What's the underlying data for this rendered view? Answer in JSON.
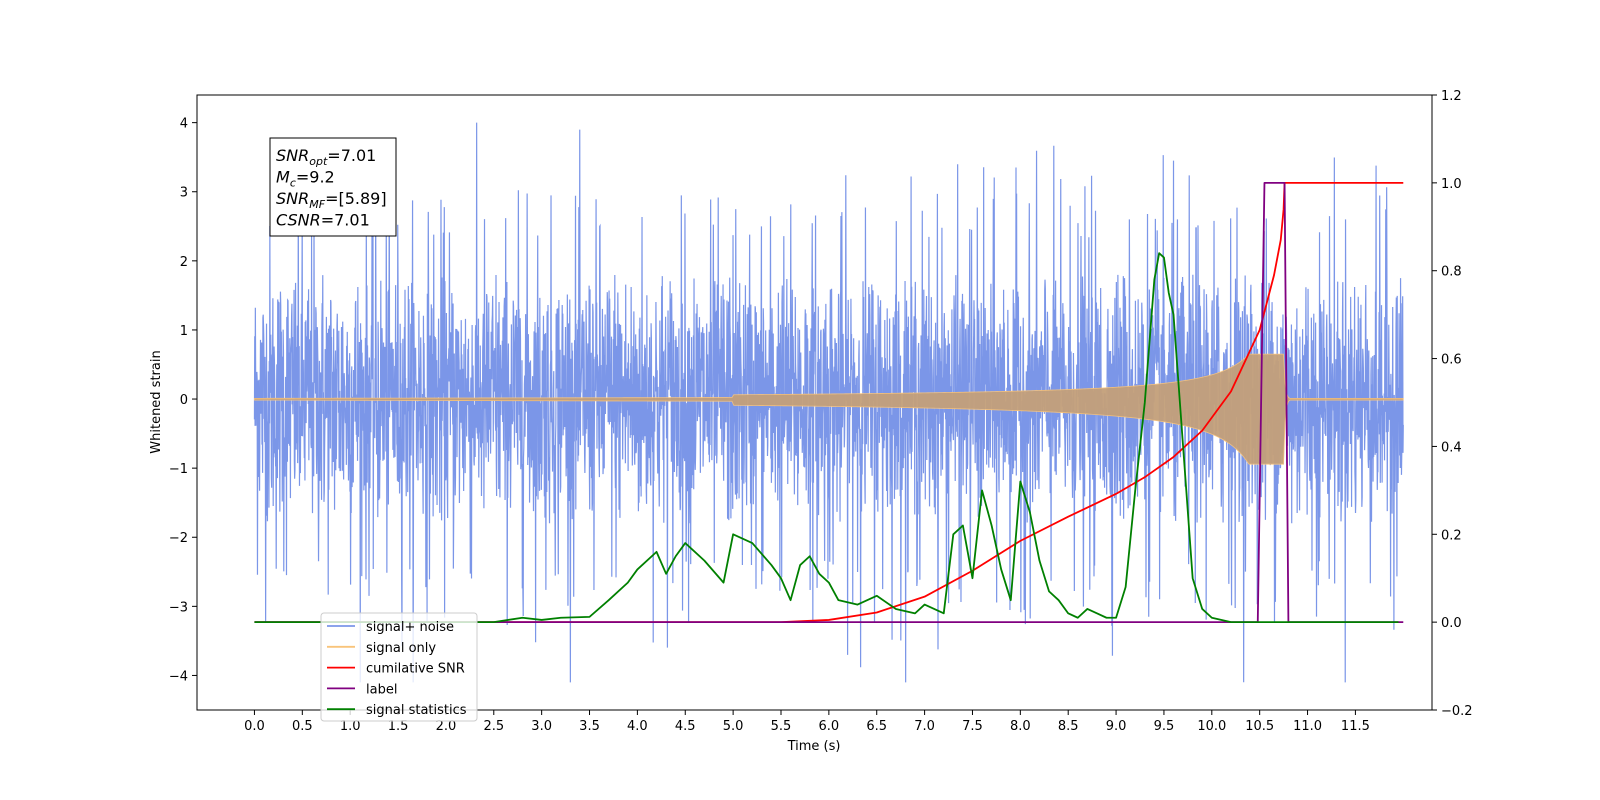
{
  "chart_data": {
    "type": "line",
    "xlabel": "Time (s)",
    "ylabel": "Whitened strain",
    "xlim": [
      -0.6,
      12.3
    ],
    "ylim": [
      -4.5,
      4.4
    ],
    "y2lim": [
      -0.2,
      1.2
    ],
    "grid": false,
    "legend_position": "lower-left",
    "x_ticks": [
      "0.0",
      "0.5",
      "1.0",
      "1.5",
      "2.0",
      "2.5",
      "3.0",
      "3.5",
      "4.0",
      "4.5",
      "5.0",
      "5.5",
      "6.0",
      "6.5",
      "7.0",
      "7.5",
      "8.0",
      "8.5",
      "9.0",
      "9.5",
      "10.0",
      "10.5",
      "11.0",
      "11.5"
    ],
    "y_ticks": [
      "4",
      "3",
      "2",
      "1",
      "0",
      "−1",
      "−2",
      "−3",
      "−4"
    ],
    "y2_ticks": [
      "1.2",
      "1.0",
      "0.8",
      "0.6",
      "0.4",
      "0.2",
      "0.0",
      "−0.2"
    ],
    "annotation": {
      "lines": [
        {
          "base": "SNR",
          "sub": "opt",
          "rest": "=7.01"
        },
        {
          "base": "M",
          "sub": "c",
          "rest": "=9.2"
        },
        {
          "base": "SNR",
          "sub": "MF",
          "rest": "=[5.89]"
        },
        {
          "base": "CSNR",
          "sub": "",
          "rest": "=7.01"
        }
      ]
    },
    "series": [
      {
        "name": "signal+ noise",
        "color": "#7b96e8",
        "axis": "left",
        "noise_amplitude": 2.2,
        "x_range": [
          0.0,
          12.0
        ]
      },
      {
        "name": "signal only",
        "color": "#f9c47a",
        "axis": "left",
        "envelope_peak": 0.65,
        "peak_time": 10.75,
        "x_range": [
          0.0,
          12.0
        ]
      },
      {
        "name": "cumilative SNR",
        "color": "#ff0000",
        "axis": "right",
        "x": [
          0.0,
          5.0,
          5.5,
          6.0,
          6.5,
          7.0,
          7.5,
          8.0,
          8.5,
          9.0,
          9.3,
          9.6,
          9.9,
          10.2,
          10.5,
          10.65,
          10.72,
          10.75,
          10.76,
          12.0
        ],
        "y": [
          0.0,
          0.0,
          0.0,
          0.005,
          0.022,
          0.058,
          0.117,
          0.185,
          0.24,
          0.292,
          0.33,
          0.376,
          0.436,
          0.525,
          0.665,
          0.79,
          0.87,
          0.94,
          1.0,
          1.0
        ]
      },
      {
        "name": "label",
        "color": "#800080",
        "axis": "right",
        "x": [
          0.0,
          10.48,
          10.55,
          10.76,
          10.8,
          12.0
        ],
        "y": [
          0.0,
          0.0,
          1.0,
          1.0,
          0.0,
          0.0
        ]
      },
      {
        "name": "signal statistics",
        "color": "#008000",
        "axis": "right",
        "x": [
          0.0,
          2.5,
          2.8,
          3.0,
          3.2,
          3.5,
          3.7,
          3.9,
          4.0,
          4.2,
          4.3,
          4.4,
          4.5,
          4.7,
          4.9,
          5.0,
          5.2,
          5.4,
          5.5,
          5.6,
          5.7,
          5.8,
          5.9,
          6.0,
          6.1,
          6.3,
          6.5,
          6.7,
          6.9,
          7.0,
          7.2,
          7.3,
          7.4,
          7.5,
          7.6,
          7.7,
          7.8,
          7.9,
          8.0,
          8.1,
          8.2,
          8.3,
          8.4,
          8.5,
          8.6,
          8.7,
          8.8,
          8.9,
          9.0,
          9.1,
          9.2,
          9.3,
          9.4,
          9.45,
          9.5,
          9.55,
          9.6,
          9.7,
          9.8,
          9.9,
          10.0,
          10.2,
          10.5,
          11.0,
          11.5,
          11.95
        ],
        "y": [
          0.0,
          0.0,
          0.01,
          0.005,
          0.01,
          0.012,
          0.05,
          0.09,
          0.12,
          0.16,
          0.11,
          0.15,
          0.18,
          0.14,
          0.09,
          0.2,
          0.18,
          0.13,
          0.1,
          0.05,
          0.13,
          0.15,
          0.11,
          0.09,
          0.05,
          0.04,
          0.06,
          0.03,
          0.02,
          0.04,
          0.02,
          0.2,
          0.22,
          0.1,
          0.3,
          0.22,
          0.12,
          0.05,
          0.32,
          0.25,
          0.14,
          0.07,
          0.05,
          0.02,
          0.01,
          0.03,
          0.02,
          0.01,
          0.01,
          0.08,
          0.3,
          0.5,
          0.78,
          0.84,
          0.83,
          0.75,
          0.7,
          0.4,
          0.1,
          0.03,
          0.01,
          0.0,
          0.0,
          0.0,
          0.0,
          0.0
        ]
      }
    ]
  }
}
